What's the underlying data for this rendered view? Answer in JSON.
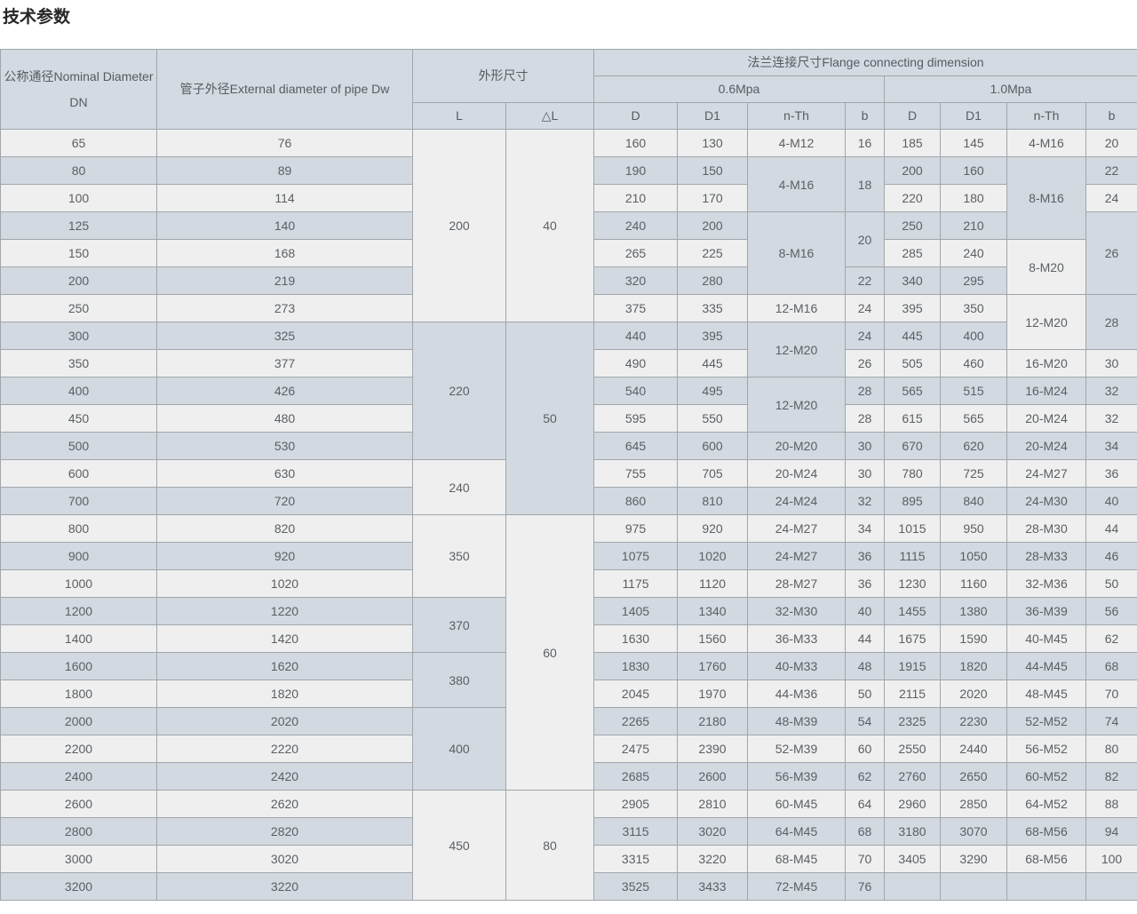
{
  "page_title": "技术参数",
  "colors": {
    "header_bg": "#d3dae1",
    "row_light": "#efefef",
    "row_blue": "#d2d9e0",
    "border": "#a0a6ab",
    "text": "#5a6065",
    "title_text": "#262626"
  },
  "table": {
    "header": {
      "dn": "公称通径Nominal Diameter DN",
      "dw": "管子外径External diameter of pipe Dw",
      "overall": "外形尺寸",
      "flange": "法兰连接尺寸Flange connecting dimension",
      "p06": "0.6Mpa",
      "p10": "1.0Mpa",
      "L": "L",
      "dL": "△L",
      "sub": [
        "D",
        "D1",
        "n-Th",
        "b"
      ]
    },
    "rows": [
      [
        [
          "65"
        ],
        [
          "76"
        ],
        [
          "200",
          7
        ],
        [
          "40",
          7
        ],
        [
          "160"
        ],
        [
          "130"
        ],
        [
          "4-M12"
        ],
        [
          "16"
        ],
        [
          "185"
        ],
        [
          "145"
        ],
        [
          "4-M16"
        ],
        [
          "20"
        ]
      ],
      [
        [
          "80"
        ],
        [
          "89"
        ],
        null,
        null,
        [
          "190"
        ],
        [
          "150"
        ],
        [
          "4-M16",
          2
        ],
        [
          "18",
          2
        ],
        [
          "200"
        ],
        [
          "160"
        ],
        [
          "8-M16",
          3
        ],
        [
          "22"
        ]
      ],
      [
        [
          "100"
        ],
        [
          "114"
        ],
        null,
        null,
        [
          "210"
        ],
        [
          "170"
        ],
        null,
        null,
        [
          "220"
        ],
        [
          "180"
        ],
        null,
        [
          "24"
        ]
      ],
      [
        [
          "125"
        ],
        [
          "140"
        ],
        null,
        null,
        [
          "240"
        ],
        [
          "200"
        ],
        [
          "8-M16",
          3
        ],
        [
          "20",
          2
        ],
        [
          "250"
        ],
        [
          "210"
        ],
        null,
        [
          "26",
          3
        ]
      ],
      [
        [
          "150"
        ],
        [
          "168"
        ],
        null,
        null,
        [
          "265"
        ],
        [
          "225"
        ],
        null,
        null,
        [
          "285"
        ],
        [
          "240"
        ],
        [
          "8-M20",
          2
        ],
        null
      ],
      [
        [
          "200"
        ],
        [
          "219"
        ],
        null,
        null,
        [
          "320"
        ],
        [
          "280"
        ],
        null,
        [
          "22"
        ],
        [
          "340"
        ],
        [
          "295"
        ],
        null,
        null
      ],
      [
        [
          "250"
        ],
        [
          "273"
        ],
        null,
        null,
        [
          "375"
        ],
        [
          "335"
        ],
        [
          "12-M16"
        ],
        [
          "24"
        ],
        [
          "395"
        ],
        [
          "350"
        ],
        [
          "12-M20",
          2
        ],
        [
          "28",
          2,
          "blue"
        ]
      ],
      [
        [
          "300"
        ],
        [
          "325"
        ],
        [
          "220",
          5
        ],
        [
          "50",
          7
        ],
        [
          "440"
        ],
        [
          "395"
        ],
        [
          "12-M20",
          2
        ],
        [
          "24"
        ],
        [
          "445"
        ],
        [
          "400"
        ],
        null,
        null
      ],
      [
        [
          "350"
        ],
        [
          "377"
        ],
        null,
        null,
        [
          "490"
        ],
        [
          "445"
        ],
        null,
        [
          "26"
        ],
        [
          "505"
        ],
        [
          "460"
        ],
        [
          "16-M20"
        ],
        [
          "30"
        ]
      ],
      [
        [
          "400"
        ],
        [
          "426"
        ],
        null,
        null,
        [
          "540"
        ],
        [
          "495"
        ],
        [
          "12-M20",
          2
        ],
        [
          "28"
        ],
        [
          "565"
        ],
        [
          "515"
        ],
        [
          "16-M24"
        ],
        [
          "32"
        ]
      ],
      [
        [
          "450"
        ],
        [
          "480"
        ],
        null,
        null,
        [
          "595"
        ],
        [
          "550"
        ],
        null,
        [
          "28"
        ],
        [
          "615"
        ],
        [
          "565"
        ],
        [
          "20-M24"
        ],
        [
          "32"
        ]
      ],
      [
        [
          "500"
        ],
        [
          "530"
        ],
        null,
        null,
        [
          "645"
        ],
        [
          "600"
        ],
        [
          "20-M20"
        ],
        [
          "30"
        ],
        [
          "670"
        ],
        [
          "620"
        ],
        [
          "20-M24"
        ],
        [
          "34"
        ]
      ],
      [
        [
          "600"
        ],
        [
          "630"
        ],
        [
          "240",
          2
        ],
        null,
        [
          "755"
        ],
        [
          "705"
        ],
        [
          "20-M24"
        ],
        [
          "30"
        ],
        [
          "780"
        ],
        [
          "725"
        ],
        [
          "24-M27"
        ],
        [
          "36"
        ]
      ],
      [
        [
          "700"
        ],
        [
          "720"
        ],
        null,
        null,
        [
          "860"
        ],
        [
          "810"
        ],
        [
          "24-M24"
        ],
        [
          "32"
        ],
        [
          "895"
        ],
        [
          "840"
        ],
        [
          "24-M30"
        ],
        [
          "40"
        ]
      ],
      [
        [
          "800"
        ],
        [
          "820"
        ],
        [
          "350",
          3
        ],
        [
          "60",
          10
        ],
        [
          "975"
        ],
        [
          "920"
        ],
        [
          "24-M27"
        ],
        [
          "34"
        ],
        [
          "1015"
        ],
        [
          "950"
        ],
        [
          "28-M30"
        ],
        [
          "44"
        ]
      ],
      [
        [
          "900"
        ],
        [
          "920"
        ],
        null,
        null,
        [
          "1075"
        ],
        [
          "1020"
        ],
        [
          "24-M27"
        ],
        [
          "36"
        ],
        [
          "1115"
        ],
        [
          "1050"
        ],
        [
          "28-M33"
        ],
        [
          "46"
        ]
      ],
      [
        [
          "1000"
        ],
        [
          "1020"
        ],
        null,
        null,
        [
          "1175"
        ],
        [
          "1120"
        ],
        [
          "28-M27"
        ],
        [
          "36"
        ],
        [
          "1230"
        ],
        [
          "1160"
        ],
        [
          "32-M36"
        ],
        [
          "50"
        ]
      ],
      [
        [
          "1200"
        ],
        [
          "1220"
        ],
        [
          "370",
          2
        ],
        null,
        [
          "1405"
        ],
        [
          "1340"
        ],
        [
          "32-M30"
        ],
        [
          "40"
        ],
        [
          "1455"
        ],
        [
          "1380"
        ],
        [
          "36-M39"
        ],
        [
          "56"
        ]
      ],
      [
        [
          "1400"
        ],
        [
          "1420"
        ],
        null,
        null,
        [
          "1630"
        ],
        [
          "1560"
        ],
        [
          "36-M33"
        ],
        [
          "44"
        ],
        [
          "1675"
        ],
        [
          "1590"
        ],
        [
          "40-M45"
        ],
        [
          "62"
        ]
      ],
      [
        [
          "1600"
        ],
        [
          "1620"
        ],
        [
          "380",
          2
        ],
        null,
        [
          "1830"
        ],
        [
          "1760"
        ],
        [
          "40-M33"
        ],
        [
          "48"
        ],
        [
          "1915"
        ],
        [
          "1820"
        ],
        [
          "44-M45"
        ],
        [
          "68"
        ]
      ],
      [
        [
          "1800"
        ],
        [
          "1820"
        ],
        null,
        null,
        [
          "2045"
        ],
        [
          "1970"
        ],
        [
          "44-M36"
        ],
        [
          "50"
        ],
        [
          "2115"
        ],
        [
          "2020"
        ],
        [
          "48-M45"
        ],
        [
          "70"
        ]
      ],
      [
        [
          "2000"
        ],
        [
          "2020"
        ],
        [
          "400",
          3
        ],
        null,
        [
          "2265"
        ],
        [
          "2180"
        ],
        [
          "48-M39"
        ],
        [
          "54"
        ],
        [
          "2325"
        ],
        [
          "2230"
        ],
        [
          "52-M52"
        ],
        [
          "74"
        ]
      ],
      [
        [
          "2200"
        ],
        [
          "2220"
        ],
        null,
        null,
        [
          "2475"
        ],
        [
          "2390"
        ],
        [
          "52-M39"
        ],
        [
          "60"
        ],
        [
          "2550"
        ],
        [
          "2440"
        ],
        [
          "56-M52"
        ],
        [
          "80"
        ]
      ],
      [
        [
          "2400"
        ],
        [
          "2420"
        ],
        null,
        null,
        [
          "2685"
        ],
        [
          "2600"
        ],
        [
          "56-M39"
        ],
        [
          "62"
        ],
        [
          "2760"
        ],
        [
          "2650"
        ],
        [
          "60-M52"
        ],
        [
          "82"
        ]
      ],
      [
        [
          "2600"
        ],
        [
          "2620"
        ],
        [
          "450",
          4
        ],
        [
          "80",
          4
        ],
        [
          "2905"
        ],
        [
          "2810"
        ],
        [
          "60-M45"
        ],
        [
          "64"
        ],
        [
          "2960"
        ],
        [
          "2850"
        ],
        [
          "64-M52"
        ],
        [
          "88"
        ]
      ],
      [
        [
          "2800"
        ],
        [
          "2820"
        ],
        null,
        null,
        [
          "3115"
        ],
        [
          "3020"
        ],
        [
          "64-M45"
        ],
        [
          "68"
        ],
        [
          "3180"
        ],
        [
          "3070"
        ],
        [
          "68-M56"
        ],
        [
          "94"
        ]
      ],
      [
        [
          "3000"
        ],
        [
          "3020"
        ],
        null,
        null,
        [
          "3315"
        ],
        [
          "3220"
        ],
        [
          "68-M45"
        ],
        [
          "70"
        ],
        [
          "3405"
        ],
        [
          "3290"
        ],
        [
          "68-M56"
        ],
        [
          "100"
        ]
      ],
      [
        [
          "3200"
        ],
        [
          "3220"
        ],
        null,
        null,
        [
          "3525"
        ],
        [
          "3433"
        ],
        [
          "72-M45"
        ],
        [
          "76"
        ],
        [
          ""
        ],
        [
          ""
        ],
        [
          ""
        ],
        [
          ""
        ]
      ]
    ]
  }
}
